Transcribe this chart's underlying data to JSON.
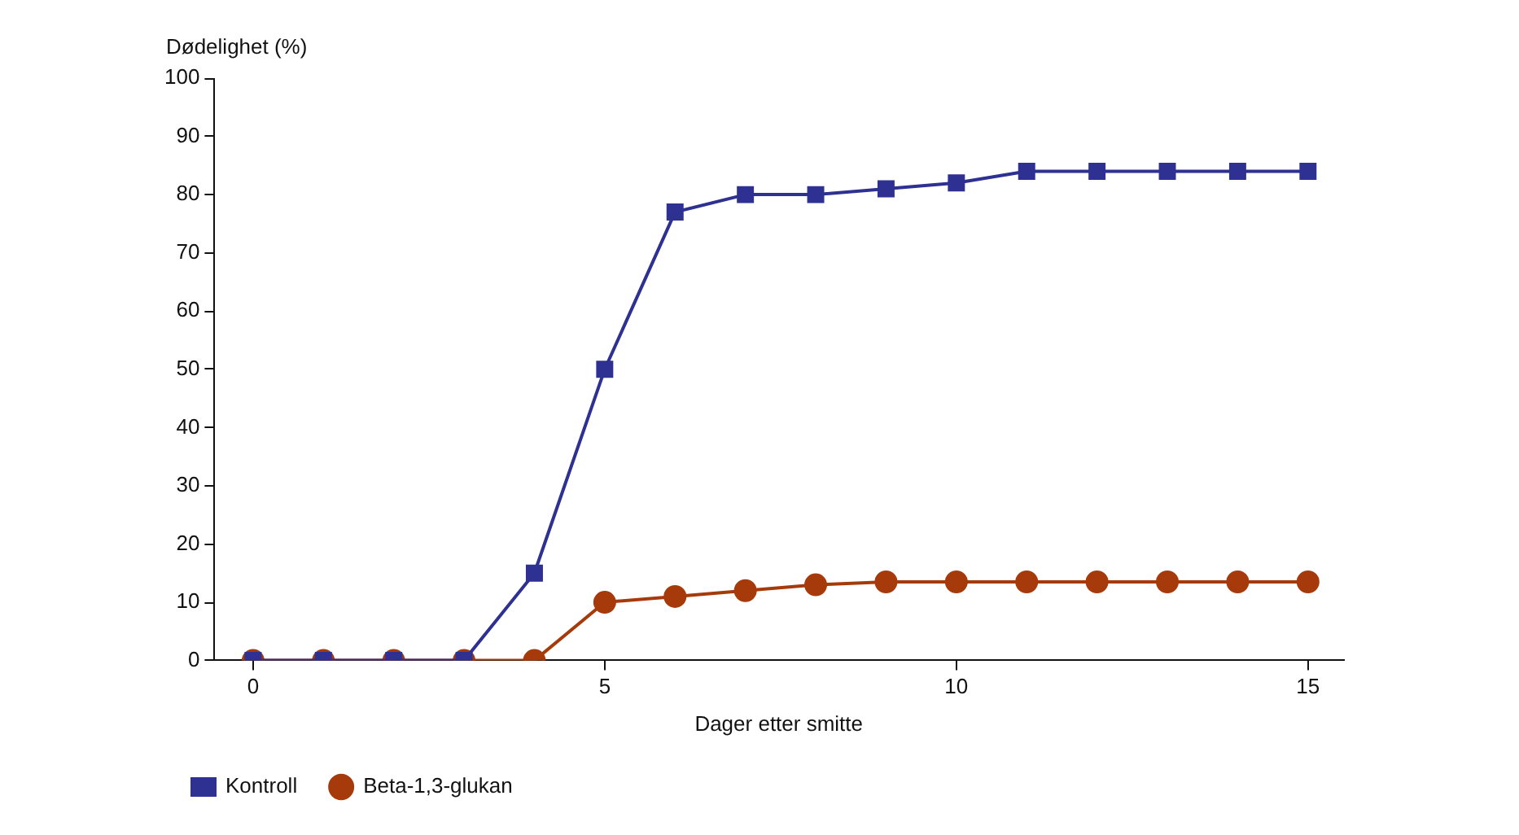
{
  "chart_data": {
    "type": "line",
    "ylabel": "Dødelighet (%)",
    "xlabel": "Dager etter smitte",
    "x": [
      0,
      1,
      2,
      3,
      4,
      5,
      6,
      7,
      8,
      9,
      10,
      11,
      12,
      13,
      14,
      15
    ],
    "series": [
      {
        "name": "Kontroll",
        "color": "#2e3192",
        "marker": "square",
        "values": [
          0,
          0,
          0,
          0,
          15,
          50,
          77,
          80,
          80,
          81,
          82,
          84,
          84,
          84,
          84,
          84
        ]
      },
      {
        "name": "Beta-1,3-glukan",
        "color": "#a63a0a",
        "marker": "circle",
        "values": [
          0,
          0,
          0,
          0,
          0,
          10,
          11,
          12,
          13,
          13.5,
          13.5,
          13.5,
          13.5,
          13.5,
          13.5,
          13.5
        ]
      }
    ],
    "xlim": [
      -0.55,
      15.5
    ],
    "xticks": [
      0,
      5,
      10,
      15
    ],
    "ylim": [
      0,
      100
    ],
    "yticks": [
      0,
      10,
      20,
      30,
      40,
      50,
      60,
      70,
      80,
      90,
      100
    ],
    "grid": false,
    "legend": "bottom"
  }
}
